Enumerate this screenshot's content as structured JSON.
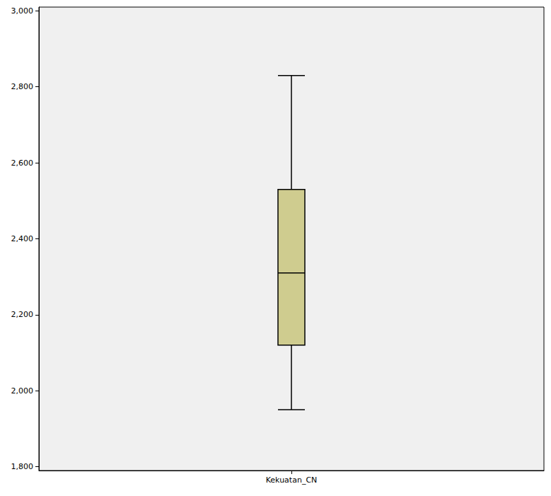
{
  "chart_data": {
    "type": "boxplot",
    "categories": [
      "Kekuatan_CN"
    ],
    "boxes": [
      {
        "min": 1.95,
        "q1": 2.12,
        "median": 2.31,
        "q3": 2.53,
        "max": 2.83
      }
    ],
    "color": "#cfcc8f",
    "ylim": [
      1.79,
      3.01
    ],
    "yticks": [
      {
        "value": 1.8,
        "label": "1,800"
      },
      {
        "value": 2.0,
        "label": "2,000"
      },
      {
        "value": 2.2,
        "label": "2,200"
      },
      {
        "value": 2.4,
        "label": "2,400"
      },
      {
        "value": 2.6,
        "label": "2,600"
      },
      {
        "value": 2.8,
        "label": "2,800"
      },
      {
        "value": 3.0,
        "label": "3,000"
      }
    ],
    "grid": false
  }
}
